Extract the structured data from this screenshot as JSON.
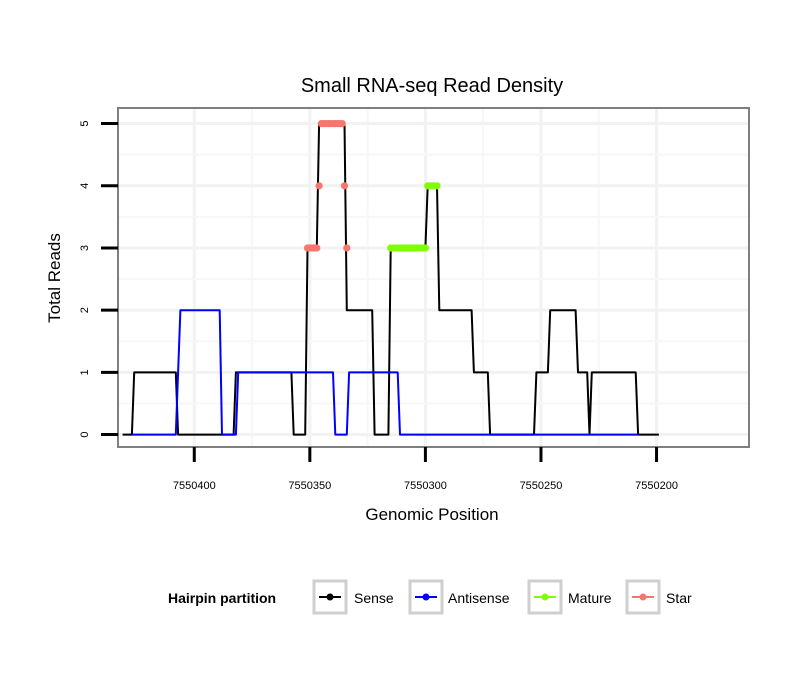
{
  "chart_data": {
    "type": "line",
    "title": "Small RNA-seq Read Density",
    "xlabel": "Genomic Position",
    "ylabel": "Total Reads",
    "xlim": [
      7550433,
      7550160
    ],
    "ylim": [
      -0.2,
      5.25
    ],
    "x_reversed": true,
    "x_ticks": [
      7550400,
      7550350,
      7550300,
      7550250,
      7550200
    ],
    "x_tick_labels": [
      "7550400",
      "7550350",
      "7550300",
      "7550250",
      "7550200"
    ],
    "y_ticks": [
      0,
      1,
      2,
      3,
      4,
      5
    ],
    "y_tick_labels": [
      "0",
      "1",
      "2",
      "3",
      "4",
      "5"
    ],
    "grid": true,
    "legend": {
      "title": "Hairpin partition",
      "position": "bottom",
      "entries": [
        {
          "label": "Sense",
          "color": "#000000"
        },
        {
          "label": "Antisense",
          "color": "#0000ff"
        },
        {
          "label": "Mature",
          "color": "#7fff00"
        },
        {
          "label": "Star",
          "color": "#f8766d"
        }
      ]
    },
    "series": [
      {
        "name": "Sense",
        "color": "#000000",
        "style": "line",
        "points": [
          [
            7550431,
            0
          ],
          [
            7550427,
            0
          ],
          [
            7550426,
            1
          ],
          [
            7550408,
            1
          ],
          [
            7550407,
            0
          ],
          [
            7550383,
            0
          ],
          [
            7550382,
            1
          ],
          [
            7550358,
            1
          ],
          [
            7550357,
            0
          ],
          [
            7550352,
            0
          ],
          [
            7550351,
            3
          ],
          [
            7550347,
            3
          ],
          [
            7550346,
            5
          ],
          [
            7550335,
            5
          ],
          [
            7550334,
            2
          ],
          [
            7550323,
            2
          ],
          [
            7550322,
            0
          ],
          [
            7550316,
            0
          ],
          [
            7550315,
            3
          ],
          [
            7550300,
            3
          ],
          [
            7550299,
            4
          ],
          [
            7550295,
            4
          ],
          [
            7550294,
            2
          ],
          [
            7550280,
            2
          ],
          [
            7550279,
            1
          ],
          [
            7550273,
            1
          ],
          [
            7550272,
            0
          ],
          [
            7550253,
            0
          ],
          [
            7550252,
            1
          ],
          [
            7550247,
            1
          ],
          [
            7550246,
            2
          ],
          [
            7550235,
            2
          ],
          [
            7550234,
            1
          ],
          [
            7550230,
            1
          ],
          [
            7550229,
            0
          ],
          [
            7550228,
            1
          ],
          [
            7550209,
            1
          ],
          [
            7550208,
            0
          ],
          [
            7550199,
            0
          ]
        ]
      },
      {
        "name": "Antisense",
        "color": "#0000ff",
        "style": "line",
        "points": [
          [
            7550427,
            0
          ],
          [
            7550408,
            0
          ],
          [
            7550407,
            1
          ],
          [
            7550406,
            2
          ],
          [
            7550389,
            2
          ],
          [
            7550388,
            0
          ],
          [
            7550382,
            0
          ],
          [
            7550381,
            1
          ],
          [
            7550353,
            1
          ],
          [
            7550346,
            1
          ],
          [
            7550340,
            1
          ],
          [
            7550339,
            0
          ],
          [
            7550334,
            0
          ],
          [
            7550333,
            1
          ],
          [
            7550312,
            1
          ],
          [
            7550311,
            0
          ],
          [
            7550208,
            0
          ]
        ]
      },
      {
        "name": "Mature",
        "color": "#7fff00",
        "style": "points",
        "points": [
          [
            7550315,
            3
          ],
          [
            7550314,
            3
          ],
          [
            7550313,
            3
          ],
          [
            7550312,
            3
          ],
          [
            7550311,
            3
          ],
          [
            7550310,
            3
          ],
          [
            7550309,
            3
          ],
          [
            7550308,
            3
          ],
          [
            7550307,
            3
          ],
          [
            7550306,
            3
          ],
          [
            7550305,
            3
          ],
          [
            7550304,
            3
          ],
          [
            7550303,
            3
          ],
          [
            7550302,
            3
          ],
          [
            7550301,
            3
          ],
          [
            7550300,
            3
          ],
          [
            7550299,
            4
          ],
          [
            7550298,
            4
          ],
          [
            7550297,
            4
          ],
          [
            7550296,
            4
          ],
          [
            7550295,
            4
          ]
        ]
      },
      {
        "name": "Star",
        "color": "#f8766d",
        "style": "points",
        "points": [
          [
            7550351,
            3
          ],
          [
            7550350,
            3
          ],
          [
            7550349,
            3
          ],
          [
            7550348,
            3
          ],
          [
            7550347,
            3
          ],
          [
            7550346,
            4
          ],
          [
            7550345,
            5
          ],
          [
            7550344,
            5
          ],
          [
            7550343,
            5
          ],
          [
            7550342,
            5
          ],
          [
            7550341,
            5
          ],
          [
            7550340,
            5
          ],
          [
            7550339,
            5
          ],
          [
            7550338,
            5
          ],
          [
            7550337,
            5
          ],
          [
            7550336,
            5
          ],
          [
            7550335,
            4
          ],
          [
            7550334,
            3
          ]
        ]
      }
    ]
  }
}
